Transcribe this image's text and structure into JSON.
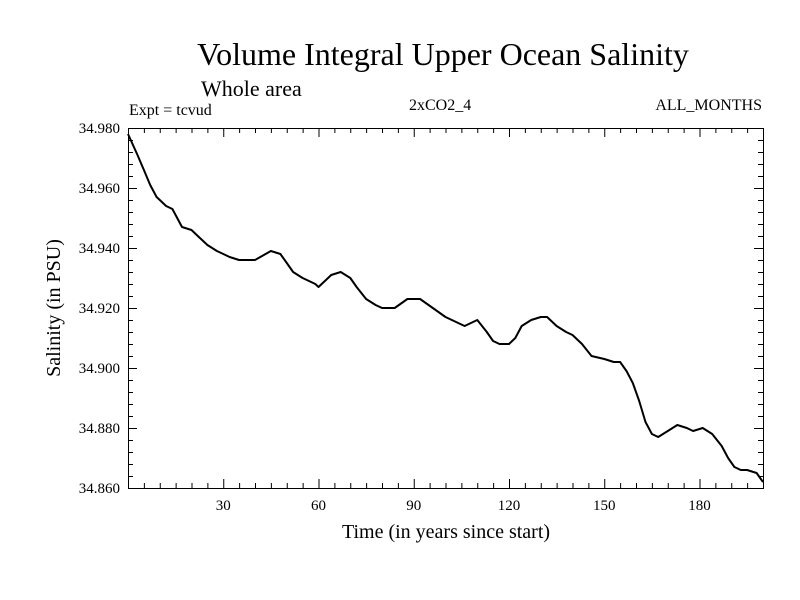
{
  "title": "Volume Integral Upper Ocean Salinity",
  "subtitle": "Whole area",
  "experiment": "Expt = tcvud",
  "run": "2xCO2_4",
  "months": "ALL_MONTHS",
  "chart_data": {
    "type": "line",
    "title": "Volume Integral Upper Ocean Salinity",
    "xlabel": "Time (in years since start)",
    "ylabel": "Salinity (in PSU)",
    "xlim": [
      0,
      200
    ],
    "ylim": [
      34.86,
      34.98
    ],
    "xticks": [
      "30",
      "60",
      "90",
      "120",
      "150",
      "180"
    ],
    "yticks": [
      "34.860",
      "34.880",
      "34.900",
      "34.920",
      "34.940",
      "34.960",
      "34.980"
    ],
    "grid": false,
    "color": "#000000",
    "series": [
      {
        "x": [
          0,
          3,
          5,
          7,
          9,
          10,
          12,
          14,
          15,
          17,
          20,
          22,
          25,
          28,
          30,
          32,
          35,
          40,
          45,
          48,
          50,
          52,
          55,
          57,
          59,
          60,
          62,
          64,
          67,
          70,
          72,
          75,
          78,
          80,
          84,
          88,
          92,
          96,
          100,
          104,
          106,
          110,
          113,
          115,
          117,
          120,
          122,
          124,
          127,
          130,
          132,
          135,
          138,
          140,
          143,
          146,
          150,
          153,
          155,
          157,
          159,
          161,
          163,
          165,
          167,
          170,
          173,
          176,
          178,
          181,
          184,
          187,
          189,
          191,
          193,
          195,
          198,
          200
        ],
        "y": [
          34.978,
          34.971,
          34.966,
          34.961,
          34.957,
          34.956,
          34.954,
          34.953,
          34.951,
          34.947,
          34.946,
          34.944,
          34.941,
          34.939,
          34.938,
          34.937,
          34.936,
          34.936,
          34.939,
          34.938,
          34.935,
          34.932,
          34.93,
          34.929,
          34.928,
          34.927,
          34.929,
          34.931,
          34.932,
          34.93,
          34.927,
          34.923,
          34.921,
          34.92,
          34.92,
          34.923,
          34.923,
          34.92,
          34.917,
          34.915,
          34.914,
          34.916,
          34.912,
          34.909,
          34.908,
          34.908,
          34.91,
          34.914,
          34.916,
          34.917,
          34.917,
          34.914,
          34.912,
          34.911,
          34.908,
          34.904,
          34.903,
          34.902,
          34.902,
          34.899,
          34.895,
          34.889,
          34.882,
          34.878,
          34.877,
          34.879,
          34.881,
          34.88,
          34.879,
          34.88,
          34.878,
          34.874,
          34.87,
          34.867,
          34.866,
          34.866,
          34.865,
          34.862
        ]
      }
    ]
  }
}
